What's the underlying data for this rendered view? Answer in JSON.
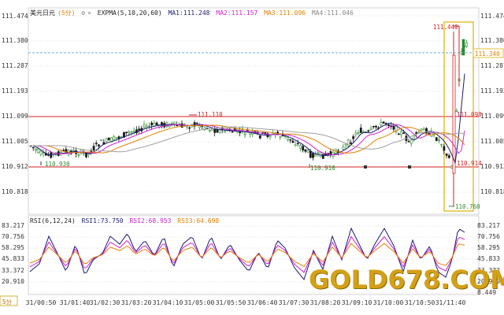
{
  "main_legend": {
    "symbol": "美元日元",
    "period": "(5分)",
    "indicator": "EXPMA(5,10,20,60)",
    "ma1": "MA1:111.248",
    "ma2": "MA2:111.157",
    "ma3": "MA3:111.096",
    "ma4": "MA4:111.046"
  },
  "rsi_legend": {
    "indicator": "RSI(6,12,24)",
    "rsi1": "RSI1:73.750",
    "rsi2": "RSI2:68.953",
    "rsi3": "RSI3:64.698"
  },
  "price_axis": [
    "111.474",
    "111.380",
    "111.287",
    "111.193",
    "111.099",
    "111.005",
    "110.912",
    "110.818"
  ],
  "rsi_axis": [
    "83.217",
    "70.756",
    "58.295",
    "45.833",
    "33.372",
    "20.910",
    "8.449"
  ],
  "time_axis": [
    "31/00:50",
    "31/01:40",
    "31/02:30",
    "31/03:20",
    "31/04:10",
    "31/05:00",
    "31/05:50",
    "31/06:40",
    "31/07:30",
    "31/08:20",
    "31/09:10",
    "31/10:00",
    "31/10:50",
    "31/11:40"
  ],
  "annotations": {
    "low1": "110.930",
    "high1": "111.110",
    "low2": "110.910",
    "level_red": "111.098",
    "level_low": "110.914",
    "spike_high": "111.440",
    "spike_low": "110.760",
    "current": "111.340"
  },
  "timeframe": "5分",
  "watermark": "GOLD678.COM",
  "colors": {
    "up": "#2e8b2e",
    "down": "#1a1a1a",
    "red_line": "#d02020",
    "ma1": "#1a1a7a",
    "ma2": "#d020d0",
    "ma3": "#e08000",
    "ma4": "#a0a0a0",
    "current_line": "#3399dd",
    "highlight_box": "#e0b000"
  }
}
